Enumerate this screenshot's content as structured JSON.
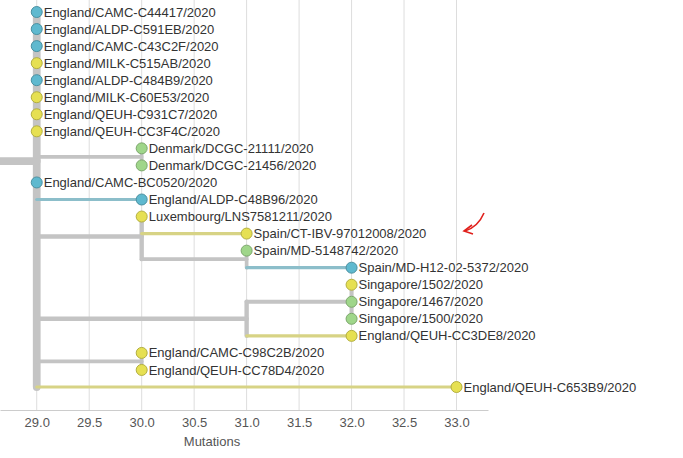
{
  "chart_data": {
    "type": "tree",
    "x_label": "Mutations",
    "xlim": [
      28.65,
      33.3
    ],
    "xticks": [
      {
        "value": 29,
        "label": "29.0"
      },
      {
        "value": 29.5,
        "label": "29.5"
      },
      {
        "value": 30,
        "label": "30.0"
      },
      {
        "value": 30.5,
        "label": "30.5"
      },
      {
        "value": 31,
        "label": "31.0"
      },
      {
        "value": 31.5,
        "label": "31.5"
      },
      {
        "value": 32,
        "label": "32.0"
      },
      {
        "value": 32.5,
        "label": "32.5"
      },
      {
        "value": 33,
        "label": "33.0"
      }
    ],
    "grid": true,
    "nodes": [
      {
        "parent": null,
        "mutations": 28.5
      },
      {
        "parent": 0,
        "mutations": 29
      },
      {
        "parent": 1,
        "mutations": 29,
        "name": "England/CAMC-C44417/2020",
        "color": "#5fb9cf"
      },
      {
        "parent": 1,
        "mutations": 29,
        "name": "England/ALDP-C591EB/2020",
        "color": "#5fb9cf"
      },
      {
        "parent": 1,
        "mutations": 29,
        "name": "England/CAMC-C43C2F/2020",
        "color": "#5fb9cf"
      },
      {
        "parent": 1,
        "mutations": 29,
        "name": "England/MILK-C515AB/2020",
        "color": "#e6e052"
      },
      {
        "parent": 1,
        "mutations": 29,
        "name": "England/ALDP-C484B9/2020",
        "color": "#5fb9cf"
      },
      {
        "parent": 1,
        "mutations": 29,
        "name": "England/MILK-C60E53/2020",
        "color": "#e6e052"
      },
      {
        "parent": 1,
        "mutations": 29,
        "name": "England/QEUH-C931C7/2020",
        "color": "#e6e052"
      },
      {
        "parent": 1,
        "mutations": 29,
        "name": "England/QEUH-CC3F4C/2020",
        "color": "#e6e052"
      },
      {
        "parent": 1,
        "mutations": 30
      },
      {
        "parent": 10,
        "mutations": 30,
        "name": "Denmark/DCGC-21111/2020",
        "color": "#9fd68a"
      },
      {
        "parent": 10,
        "mutations": 30,
        "name": "Denmark/DCGC-21456/2020",
        "color": "#9fd68a"
      },
      {
        "parent": 1,
        "mutations": 29,
        "name": "England/CAMC-BC0520/2020",
        "color": "#5fb9cf"
      },
      {
        "parent": 1,
        "mutations": 30,
        "name": "England/ALDP-C48B96/2020",
        "color": "#5fb9cf"
      },
      {
        "parent": 1,
        "mutations": 30
      },
      {
        "parent": 15,
        "mutations": 30,
        "name": "Luxembourg/LNS7581211/2020",
        "color": "#e6e052"
      },
      {
        "parent": 15,
        "mutations": 31,
        "name": "Spain/CT-IBV-97012008/2020",
        "color": "#e6e052"
      },
      {
        "parent": 15,
        "mutations": 31
      },
      {
        "parent": 18,
        "mutations": 31,
        "name": "Spain/MD-5148742/2020",
        "color": "#9fd68a"
      },
      {
        "parent": 18,
        "mutations": 32,
        "name": "Spain/MD-H12-02-5372/2020",
        "color": "#5fb9cf"
      },
      {
        "parent": 1,
        "mutations": 31
      },
      {
        "parent": 21,
        "mutations": 32
      },
      {
        "parent": 22,
        "mutations": 32,
        "name": "Singapore/1502/2020",
        "color": "#e6e052"
      },
      {
        "parent": 22,
        "mutations": 32,
        "name": "Singapore/1467/2020",
        "color": "#9fd68a"
      },
      {
        "parent": 22,
        "mutations": 32,
        "name": "Singapore/1500/2020",
        "color": "#9fd68a"
      },
      {
        "parent": 21,
        "mutations": 32,
        "name": "England/QEUH-CC3DE8/2020",
        "color": "#e6e052"
      },
      {
        "parent": 1,
        "mutations": 30
      },
      {
        "parent": 27,
        "mutations": 30,
        "name": "England/CAMC-C98C2B/2020",
        "color": "#e6e052"
      },
      {
        "parent": 27,
        "mutations": 30,
        "name": "England/QEUH-CC78D4/2020",
        "color": "#e6e052"
      },
      {
        "parent": 1,
        "mutations": 33,
        "name": "England/QEUH-C653B9/2020",
        "color": "#e6e052"
      }
    ]
  }
}
